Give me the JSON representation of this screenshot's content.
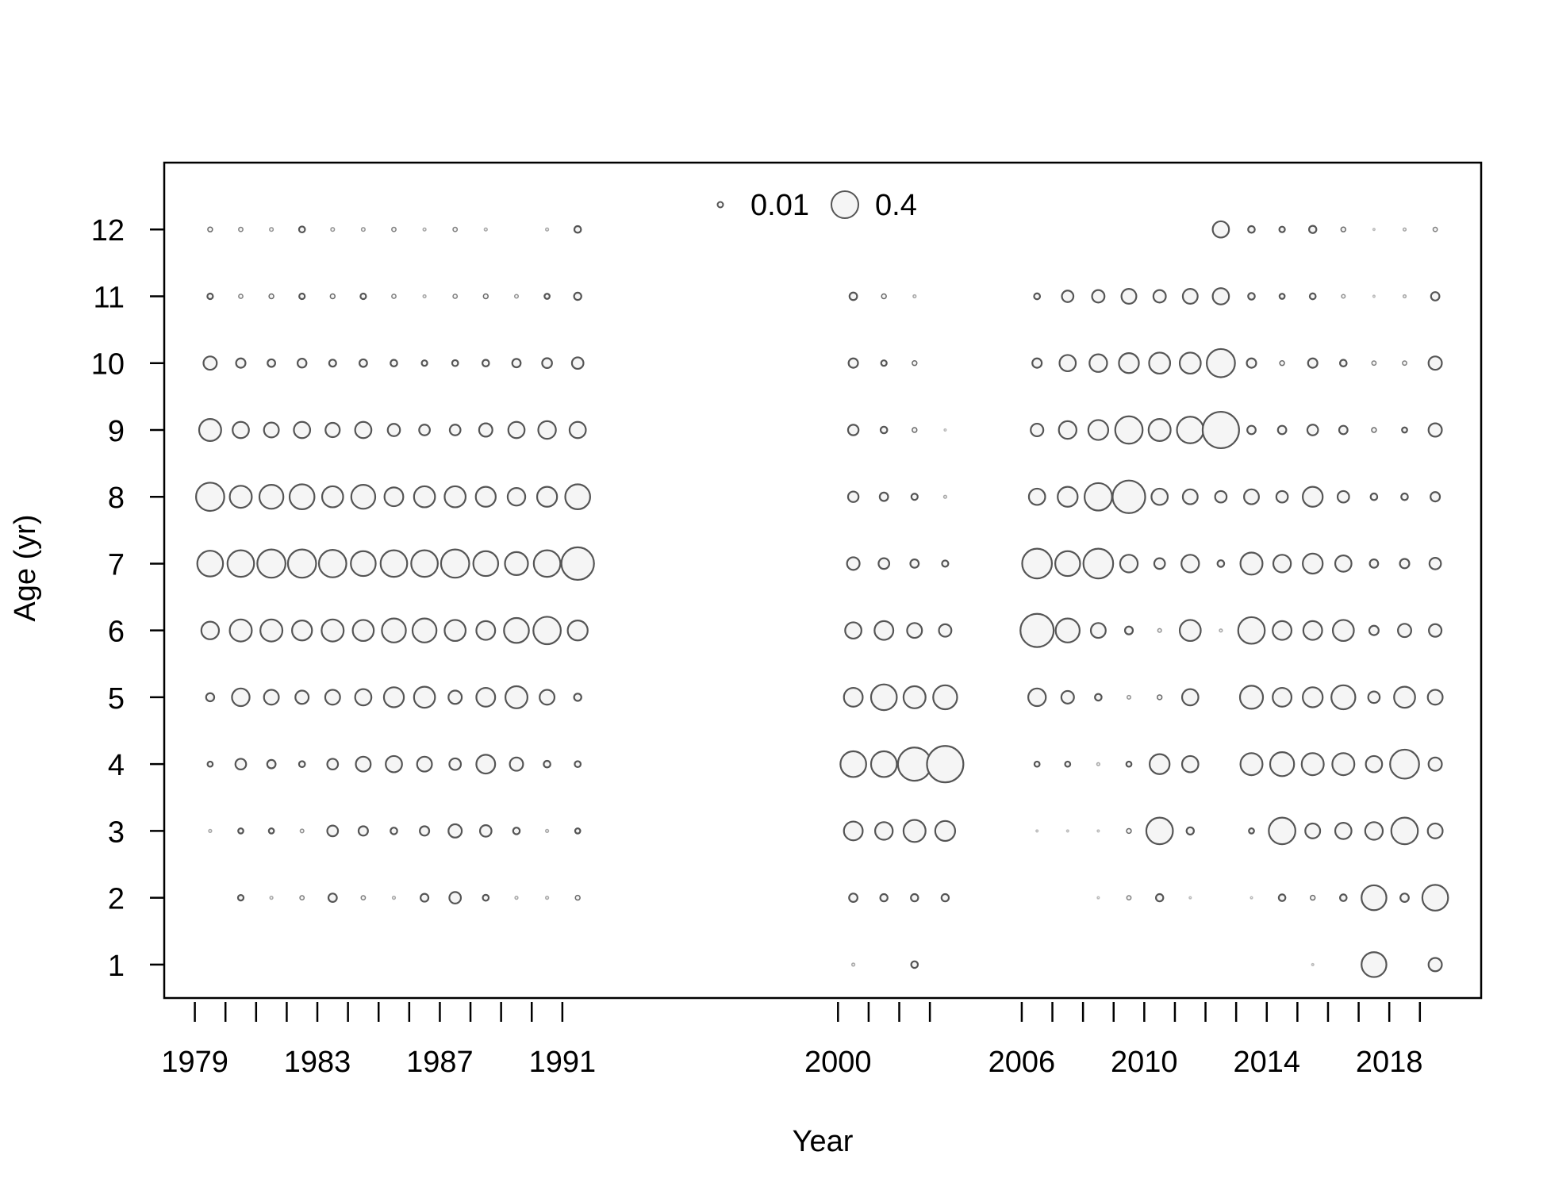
{
  "chart_data": {
    "type": "scatter",
    "subtype": "bubble",
    "xlabel": "Year",
    "ylabel": "Age (yr)",
    "x_tick_labels": [
      "1979",
      "1983",
      "1987",
      "1991",
      "2000",
      "2006",
      "2010",
      "2014",
      "2018"
    ],
    "y_tick_labels": [
      "1",
      "2",
      "3",
      "4",
      "5",
      "6",
      "7",
      "8",
      "9",
      "10",
      "11",
      "12"
    ],
    "x_tick_years": [
      1979,
      1980,
      1981,
      1982,
      1983,
      1984,
      1985,
      1986,
      1987,
      1988,
      1989,
      1990,
      1991,
      2000,
      2001,
      2002,
      2003,
      2006,
      2007,
      2008,
      2009,
      2010,
      2011,
      2012,
      2013,
      2014,
      2015,
      2016,
      2017,
      2018,
      2019
    ],
    "xlim": [
      1978,
      2021
    ],
    "ylim": [
      0.5,
      13
    ],
    "legend": {
      "position": "top-center",
      "entries": [
        {
          "label": "0.01",
          "value": 0.01
        },
        {
          "label": "0.4",
          "value": 0.4
        }
      ]
    },
    "colors": {
      "marker_stroke": "#555555",
      "marker_fill": "#f5f5f5",
      "axis": "#000000"
    },
    "ages": [
      1,
      2,
      3,
      4,
      5,
      6,
      7,
      8,
      9,
      10,
      11,
      12
    ],
    "series": [
      {
        "year": 1979.5,
        "values": [
          null,
          null,
          0.002,
          0.006,
          0.015,
          0.07,
          0.15,
          0.18,
          0.11,
          0.04,
          0.007,
          0.005
        ]
      },
      {
        "year": 1980.5,
        "values": [
          null,
          0.007,
          0.006,
          0.026,
          0.07,
          0.11,
          0.16,
          0.11,
          0.06,
          0.02,
          0.004,
          0.004
        ]
      },
      {
        "year": 1981.5,
        "values": [
          null,
          0.002,
          0.006,
          0.016,
          0.05,
          0.11,
          0.18,
          0.13,
          0.05,
          0.013,
          0.005,
          0.003
        ]
      },
      {
        "year": 1982.5,
        "values": [
          null,
          0.004,
          0.003,
          0.008,
          0.04,
          0.09,
          0.18,
          0.14,
          0.06,
          0.018,
          0.007,
          0.008
        ]
      },
      {
        "year": 1983.5,
        "values": [
          null,
          0.016,
          0.026,
          0.026,
          0.05,
          0.11,
          0.17,
          0.1,
          0.046,
          0.011,
          0.005,
          0.003
        ]
      },
      {
        "year": 1984.5,
        "values": [
          null,
          0.004,
          0.02,
          0.05,
          0.06,
          0.1,
          0.14,
          0.13,
          0.06,
          0.013,
          0.007,
          0.003
        ]
      },
      {
        "year": 1985.5,
        "values": [
          null,
          0.002,
          0.01,
          0.06,
          0.09,
          0.13,
          0.16,
          0.08,
          0.034,
          0.01,
          0.004,
          0.004
        ]
      },
      {
        "year": 1986.5,
        "values": [
          null,
          0.014,
          0.02,
          0.05,
          0.1,
          0.13,
          0.16,
          0.1,
          0.026,
          0.007,
          0.002,
          0.002
        ]
      },
      {
        "year": 1987.5,
        "values": [
          null,
          0.03,
          0.04,
          0.03,
          0.04,
          0.1,
          0.18,
          0.1,
          0.026,
          0.008,
          0.004,
          0.004
        ]
      },
      {
        "year": 1988.5,
        "values": [
          null,
          0.008,
          0.03,
          0.08,
          0.08,
          0.08,
          0.14,
          0.09,
          0.04,
          0.01,
          0.005,
          0.002
        ]
      },
      {
        "year": 1989.5,
        "values": [
          null,
          0.002,
          0.01,
          0.04,
          0.11,
          0.14,
          0.12,
          0.07,
          0.06,
          0.016,
          0.003,
          null
        ]
      },
      {
        "year": 1990.5,
        "values": [
          null,
          0.002,
          0.002,
          0.01,
          0.05,
          0.17,
          0.16,
          0.09,
          0.07,
          0.022,
          0.006,
          0.002
        ]
      },
      {
        "year": 1991.5,
        "values": [
          null,
          0.005,
          0.006,
          0.008,
          0.012,
          0.09,
          0.24,
          0.14,
          0.06,
          0.03,
          0.012,
          0.01
        ]
      },
      {
        "year": 2000.5,
        "values": [
          0.002,
          0.016,
          0.08,
          0.15,
          0.08,
          0.06,
          0.036,
          0.025,
          0.025,
          0.02,
          0.013,
          null
        ]
      },
      {
        "year": 2001.5,
        "values": [
          null,
          0.012,
          0.07,
          0.15,
          0.15,
          0.08,
          0.026,
          0.016,
          0.01,
          0.007,
          0.005,
          null
        ]
      },
      {
        "year": 2002.5,
        "values": [
          0.01,
          0.012,
          0.11,
          0.25,
          0.11,
          0.05,
          0.016,
          0.009,
          0.005,
          0.005,
          0.002,
          null
        ]
      },
      {
        "year": 2003.5,
        "values": [
          null,
          0.012,
          0.09,
          0.3,
          0.13,
          0.035,
          0.009,
          0.002,
          0.001,
          null,
          null,
          null
        ]
      },
      {
        "year": 2006.5,
        "values": [
          null,
          null,
          0.001,
          0.006,
          0.07,
          0.25,
          0.2,
          0.06,
          0.036,
          0.02,
          0.008,
          null
        ]
      },
      {
        "year": 2007.5,
        "values": [
          null,
          null,
          0.001,
          0.006,
          0.036,
          0.13,
          0.14,
          0.09,
          0.07,
          0.06,
          0.03,
          null
        ]
      },
      {
        "year": 2008.5,
        "values": [
          null,
          0.001,
          0.001,
          0.002,
          0.01,
          0.05,
          0.2,
          0.17,
          0.09,
          0.07,
          0.035,
          null
        ]
      },
      {
        "year": 2009.5,
        "values": [
          null,
          0.004,
          0.005,
          0.006,
          0.003,
          0.014,
          0.07,
          0.24,
          0.17,
          0.09,
          0.05,
          null
        ]
      },
      {
        "year": 2010.5,
        "values": [
          null,
          0.012,
          0.16,
          0.09,
          0.005,
          0.003,
          0.026,
          0.06,
          0.11,
          0.1,
          0.035,
          null
        ]
      },
      {
        "year": 2011.5,
        "values": [
          null,
          0.001,
          0.012,
          0.06,
          0.06,
          0.1,
          0.07,
          0.05,
          0.16,
          0.1,
          0.05,
          null
        ]
      },
      {
        "year": 2012.5,
        "values": [
          null,
          null,
          null,
          null,
          null,
          0.002,
          0.01,
          0.03,
          0.3,
          0.18,
          0.06,
          0.06
        ]
      },
      {
        "year": 2013.5,
        "values": [
          null,
          0.001,
          0.006,
          0.11,
          0.12,
          0.16,
          0.11,
          0.05,
          0.016,
          0.02,
          0.01,
          0.01
        ]
      },
      {
        "year": 2014.5,
        "values": [
          null,
          0.01,
          0.16,
          0.13,
          0.08,
          0.08,
          0.07,
          0.03,
          0.016,
          0.005,
          0.006,
          0.007
        ]
      },
      {
        "year": 2015.5,
        "values": [
          0.001,
          0.005,
          0.05,
          0.11,
          0.09,
          0.08,
          0.09,
          0.09,
          0.026,
          0.02,
          0.008,
          0.012
        ]
      },
      {
        "year": 2016.5,
        "values": [
          null,
          0.01,
          0.06,
          0.11,
          0.13,
          0.1,
          0.06,
          0.03,
          0.016,
          0.01,
          0.003,
          0.005
        ]
      },
      {
        "year": 2017.5,
        "values": [
          0.14,
          0.14,
          0.07,
          0.06,
          0.03,
          0.02,
          0.016,
          0.01,
          0.005,
          0.004,
          0.001,
          0.001
        ]
      },
      {
        "year": 2018.5,
        "values": [
          null,
          0.016,
          0.16,
          0.19,
          0.1,
          0.04,
          0.02,
          0.01,
          0.006,
          0.004,
          0.002,
          0.002
        ]
      },
      {
        "year": 2019.5,
        "values": [
          0.04,
          0.15,
          0.05,
          0.04,
          0.05,
          0.036,
          0.03,
          0.02,
          0.04,
          0.04,
          0.016,
          0.004
        ]
      }
    ]
  }
}
